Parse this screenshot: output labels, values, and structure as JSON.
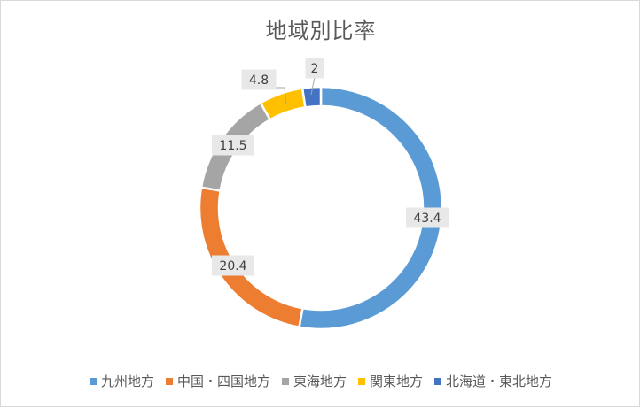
{
  "chart_data": {
    "type": "pie",
    "title": "地域別比率",
    "categories": [
      "九州地方",
      "中国・四国地方",
      "東海地方",
      "関東地方",
      "北海道・東北地方"
    ],
    "values": [
      43.4,
      20.4,
      11.5,
      4.8,
      2
    ],
    "value_labels": [
      "43.4",
      "20.4",
      "11.5",
      "4.8",
      "2"
    ],
    "colors": [
      "#5b9bd5",
      "#ed7d31",
      "#a5a5a5",
      "#ffc000",
      "#4472c4"
    ],
    "donut": true,
    "legend_position": "bottom"
  }
}
